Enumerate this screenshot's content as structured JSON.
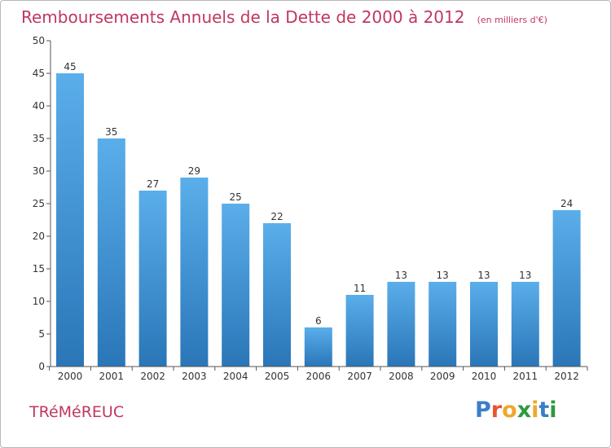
{
  "header": {
    "title": "Remboursements Annuels de la Dette de 2000 à 2012",
    "unit": "(en milliers d'€)"
  },
  "commune": "TRéMéREUC",
  "logo": {
    "letters": [
      "P",
      "r",
      "o",
      "x",
      "i",
      "t",
      "i"
    ]
  },
  "chart_data": {
    "type": "bar",
    "title": "Remboursements Annuels de la Dette de 2000 à 2012",
    "xlabel": "",
    "ylabel": "",
    "categories": [
      "2000",
      "2001",
      "2002",
      "2003",
      "2004",
      "2005",
      "2006",
      "2007",
      "2008",
      "2009",
      "2010",
      "2011",
      "2012"
    ],
    "values": [
      45,
      35,
      27,
      29,
      25,
      22,
      6,
      11,
      13,
      13,
      13,
      13,
      24
    ],
    "ylim": [
      0,
      50
    ],
    "yticks": [
      0,
      5,
      10,
      15,
      20,
      25,
      30,
      35,
      40,
      45,
      50
    ],
    "grid": false,
    "colors": {
      "bar_top": "#5aaeea",
      "bar_bottom": "#2a76b8",
      "axis": "#555555",
      "label": "#333333"
    }
  }
}
